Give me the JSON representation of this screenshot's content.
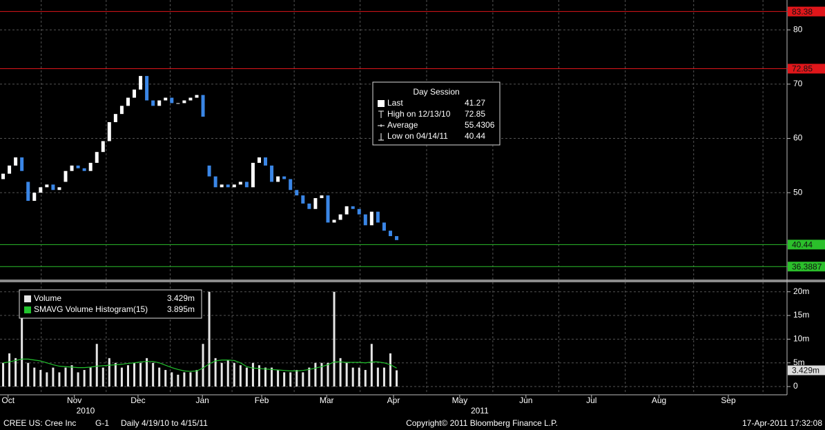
{
  "chart_data": [
    {
      "type": "candlestick",
      "categories": [
        null,
        null,
        null,
        null,
        null,
        null,
        null,
        null,
        null,
        null,
        null,
        null,
        null,
        null,
        null,
        null,
        null,
        null,
        null,
        null,
        null,
        null,
        null,
        null,
        null,
        null,
        null,
        null,
        null,
        null,
        null,
        null,
        null,
        null,
        null,
        null,
        null,
        null,
        null,
        null,
        null,
        null,
        null,
        null,
        null,
        null,
        null,
        null,
        null,
        null,
        null,
        null,
        null,
        null,
        null,
        null,
        null,
        null,
        null,
        null,
        null,
        null,
        null,
        null
      ],
      "open": [
        52.5,
        53.5,
        55,
        56.5,
        52,
        48.5,
        50,
        51,
        51.5,
        50.5,
        52,
        54,
        55,
        54.5,
        54,
        55.5,
        57.5,
        59.5,
        63,
        64.5,
        66,
        67.5,
        69,
        71.5,
        67,
        66,
        67,
        67.5,
        66.5,
        66.5,
        67,
        67.5,
        68,
        55,
        53,
        51,
        51.5,
        51,
        51.5,
        52,
        51,
        55.5,
        56.5,
        55,
        52,
        53,
        52.5,
        50.5,
        49.5,
        48,
        47,
        49,
        49.5,
        44.5,
        45,
        46,
        47.5,
        47,
        46,
        44,
        46.5,
        44.5,
        43,
        42
      ],
      "close": [
        53.5,
        55,
        56.5,
        54,
        48.5,
        50,
        51,
        51.5,
        50.5,
        51,
        54,
        55,
        54.5,
        54,
        55.5,
        57.5,
        59.5,
        63,
        64.5,
        66,
        67.5,
        69,
        71.5,
        67,
        66,
        67,
        67.5,
        66.5,
        66.5,
        67,
        67.5,
        68,
        64,
        53,
        51,
        51.5,
        51,
        51.5,
        52,
        51,
        55.5,
        56.5,
        55,
        52,
        53,
        52.5,
        50.5,
        49.5,
        48,
        47,
        49,
        49.5,
        44.5,
        45,
        46,
        47.5,
        47,
        46,
        44,
        46.5,
        44.5,
        43,
        42,
        41.27
      ],
      "up_color": "#ffffff",
      "down_color": "#3a86e6",
      "xlim": [
        -0.5,
        125.5
      ],
      "ylim": [
        34,
        85.5
      ],
      "yticks": [
        50,
        60,
        70,
        80
      ],
      "grid": true,
      "levels": [
        {
          "value": 83.38,
          "color": "#e0161a"
        },
        {
          "value": 72.85,
          "color": "#e0161a"
        },
        {
          "value": 40.44,
          "color": "#2bbf2b"
        },
        {
          "value": 36.3887,
          "color": "#2bbf2b"
        }
      ],
      "legend": {
        "title": "Day Session",
        "rows": [
          {
            "label": "Last",
            "value": 41.27
          },
          {
            "label": "High on 12/13/10",
            "value": 72.85
          },
          {
            "label": "Average",
            "value": 55.4306
          },
          {
            "label": "Low on 04/14/11",
            "value": 40.44
          }
        ]
      }
    },
    {
      "type": "bar",
      "xlim": [
        -0.5,
        125.5
      ],
      "ylim": [
        -1.74,
        22
      ],
      "yticks": [
        {
          "value": 0,
          "label": "0"
        },
        {
          "value": 5,
          "label": "5m"
        },
        {
          "value": 10,
          "label": "10m"
        },
        {
          "value": 15,
          "label": "15m"
        },
        {
          "value": 20,
          "label": "20m"
        }
      ],
      "series": [
        {
          "name": "Volume",
          "color": "#e6e6e6",
          "last_label": "3.429m",
          "values": [
            5,
            7,
            6,
            16,
            5,
            4,
            3.5,
            3,
            4,
            3,
            4,
            4.5,
            3,
            3.5,
            4,
            9,
            4,
            6,
            5,
            4,
            4.5,
            5,
            5,
            6,
            5,
            4,
            3.5,
            3,
            2.5,
            3,
            3,
            3.5,
            9,
            20,
            6,
            5,
            5.5,
            5,
            4.5,
            4,
            5,
            4.5,
            4,
            4,
            3.5,
            3,
            3,
            3.5,
            3,
            4,
            5,
            5,
            5,
            20,
            6,
            5,
            4,
            4,
            3.5,
            9,
            4,
            4,
            7,
            3.429
          ]
        },
        {
          "name": "SMAVG Volume Histogram(15)",
          "color": "#22c32e",
          "type": "line",
          "last_label": "3.895m",
          "values": [
            5,
            5.2,
            5.5,
            5.8,
            5.8,
            5.6,
            5.4,
            5,
            4.6,
            4.3,
            4.2,
            4.1,
            4,
            4,
            4.1,
            4.3,
            4.4,
            4.5,
            4.6,
            4.7,
            4.9,
            5,
            5.2,
            5.3,
            5.3,
            5,
            4.5,
            4,
            3.6,
            3.3,
            3.2,
            3.3,
            3.9,
            4.8,
            5.4,
            5.6,
            5.6,
            5.5,
            5,
            4.2,
            3.9,
            3.8,
            3.7,
            3.6,
            3.5,
            3.4,
            3.3,
            3.3,
            3.4,
            3.6,
            3.9,
            4.2,
            4.6,
            5.2,
            5.2,
            5.1,
            5.1,
            5.1,
            5,
            5.2,
            5.2,
            5,
            4.6,
            3.895
          ]
        }
      ],
      "xticks": [
        {
          "value": 0.8,
          "label": "Oct"
        },
        {
          "value": 11.4,
          "label": "Nov"
        },
        {
          "value": 21.6,
          "label": "Dec"
        },
        {
          "value": 31.9,
          "label": "Jan"
        },
        {
          "value": 41.4,
          "label": "Feb"
        },
        {
          "value": 51.8,
          "label": "Mar"
        },
        {
          "value": 62.5,
          "label": "Apr"
        },
        {
          "value": 73.1,
          "label": "May"
        },
        {
          "value": 83.7,
          "label": "Jun"
        },
        {
          "value": 94.2,
          "label": "Jul"
        },
        {
          "value": 105,
          "label": "Aug"
        },
        {
          "value": 116.1,
          "label": "Sep"
        }
      ],
      "year_ticks": [
        {
          "value": 13.2,
          "label": "2010"
        },
        {
          "value": 76.3,
          "label": "2011"
        }
      ]
    }
  ],
  "footer": {
    "security": "CREE US: Cree Inc",
    "page": "G-1",
    "period": "Daily 4/19/10 to 4/15/11",
    "copyright": "Copyright© 2011 Bloomberg Finance L.P.",
    "timestamp": "17-Apr-2011 17:32:08"
  }
}
